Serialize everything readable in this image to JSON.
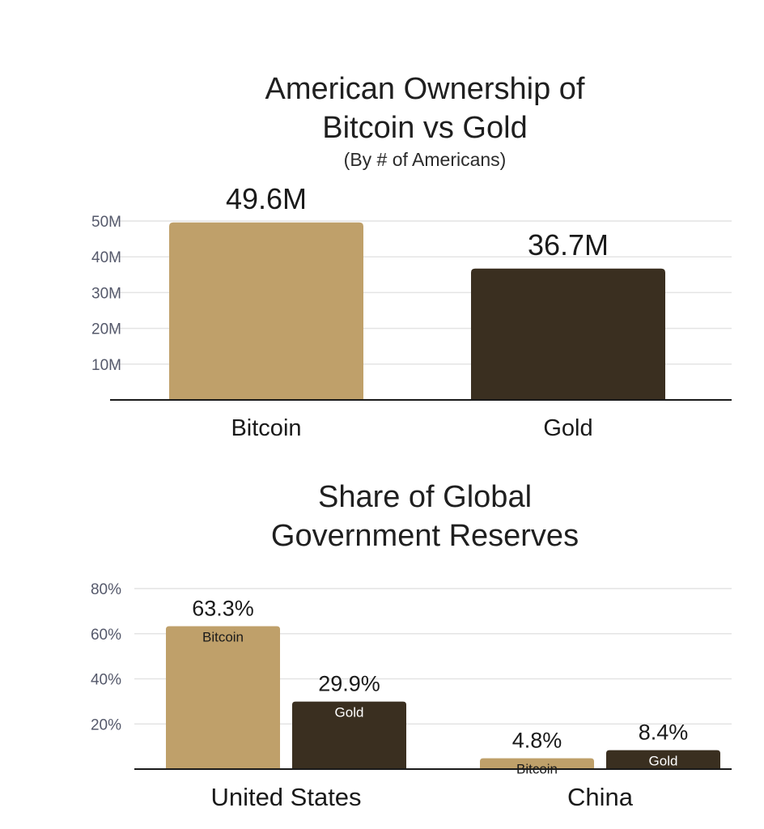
{
  "colors": {
    "bitcoin": "#BFA06A",
    "gold": "#3A2F20",
    "grid": "#E4E4E4",
    "axis": "#1A1A1A",
    "tick": "#55596B"
  },
  "chart_data": [
    {
      "type": "bar",
      "title": [
        "American Ownership of",
        "Bitcoin vs Gold"
      ],
      "subtitle": "(By # of Americans)",
      "categories": [
        "Bitcoin",
        "Gold"
      ],
      "values": [
        49.6,
        36.7
      ],
      "value_labels": [
        "49.6M",
        "36.7M"
      ],
      "unit": "M",
      "yticks": [
        "10M",
        "20M",
        "30M",
        "40M",
        "50M"
      ],
      "ylim": [
        0,
        50
      ],
      "grid": true
    },
    {
      "type": "bar",
      "title": [
        "Share of Global",
        "Government Reserves"
      ],
      "categories": [
        "United States",
        "China"
      ],
      "series": [
        {
          "name": "Bitcoin",
          "values": [
            63.3,
            4.8
          ],
          "value_labels": [
            "63.3%",
            "4.8%"
          ]
        },
        {
          "name": "Gold",
          "values": [
            29.9,
            8.4
          ],
          "value_labels": [
            "29.9%",
            "8.4%"
          ]
        }
      ],
      "unit": "%",
      "yticks": [
        "20%",
        "40%",
        "60%",
        "80%"
      ],
      "ylim": [
        0,
        80
      ],
      "grid": true
    }
  ]
}
